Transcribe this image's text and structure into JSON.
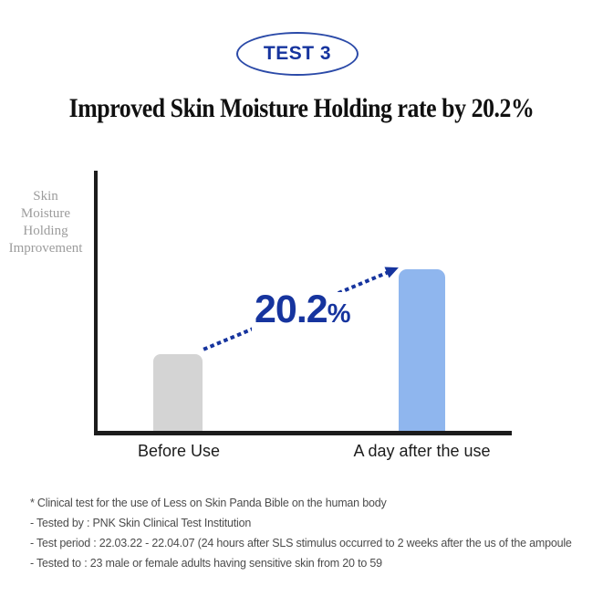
{
  "badge": {
    "label": "TEST 3"
  },
  "title": "Improved Skin Moisture Holding rate by 20.2%",
  "colors": {
    "accent_blue": "#16349e",
    "badge_border_blue": "#2b4aa8",
    "bar_before": "#d4d4d4",
    "bar_after": "#8fb6ee",
    "axis_black": "#1c1c1c",
    "ylabel_gray": "#9c9c9c",
    "footnote_gray": "#4c4c4c"
  },
  "chart_data": {
    "type": "bar",
    "title": "Improved Skin Moisture Holding rate by 20.2%",
    "categories": [
      "Before Use",
      "A day after the use"
    ],
    "values": [
      84,
      177
    ],
    "values_unit": "relative bar height (px), no numeric axis shown",
    "series_colors": [
      "#d4d4d4",
      "#8fb6ee"
    ],
    "ylabel": "Skin Moisture Holding Improvement",
    "ylabel_lines": [
      "Skin",
      "Moisture",
      "Holding",
      "Improvement"
    ],
    "annotation": {
      "value": "20.2",
      "unit": "%"
    },
    "grid": false,
    "legend": false
  },
  "footnotes": [
    "* Clinical test for the use of Less on Skin Panda Bible on the human body",
    "- Tested by : PNK Skin Clinical Test Institution",
    "- Test period : 22.03.22 - 22.04.07 (24 hours after SLS stimulus occurred to 2 weeks after the us of the ampoule",
    "- Tested to : 23 male or female adults having sensitive skin from 20 to 59"
  ]
}
